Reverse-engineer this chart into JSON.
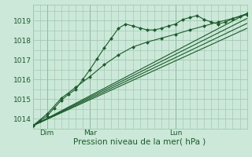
{
  "bg_color": "#cce8d8",
  "grid_color": "#99c4aa",
  "line_color": "#1a5c2a",
  "marker_color": "#1a5c2a",
  "xlabel": "Pression niveau de la mer( hPa )",
  "xlim": [
    0,
    60
  ],
  "ylim": [
    1013.5,
    1019.8
  ],
  "yticks": [
    1014,
    1015,
    1016,
    1017,
    1018,
    1019
  ],
  "xtick_labels": [
    "Dim",
    "Mar",
    "Lun"
  ],
  "xtick_positions": [
    4,
    16,
    40
  ],
  "vline_positions": [
    4,
    16,
    40
  ],
  "series": [
    {
      "x": [
        0,
        2,
        4,
        6,
        8,
        10,
        12,
        14,
        16,
        18,
        20,
        22,
        24,
        26,
        28,
        30,
        32,
        34,
        36,
        38,
        40,
        42,
        44,
        46,
        48,
        50,
        52,
        54,
        56,
        58,
        60
      ],
      "y": [
        1013.65,
        1013.9,
        1014.15,
        1014.55,
        1014.95,
        1015.25,
        1015.5,
        1016.0,
        1016.5,
        1017.05,
        1017.6,
        1018.1,
        1018.6,
        1018.82,
        1018.72,
        1018.62,
        1018.52,
        1018.52,
        1018.6,
        1018.72,
        1018.82,
        1019.05,
        1019.15,
        1019.25,
        1019.05,
        1018.92,
        1018.82,
        1018.92,
        1019.1,
        1019.22,
        1019.35
      ],
      "marker": "D",
      "linewidth": 0.8,
      "markersize": 2.0
    },
    {
      "x": [
        0,
        4,
        8,
        12,
        16,
        20,
        24,
        28,
        32,
        36,
        40,
        44,
        48,
        52,
        56,
        60
      ],
      "y": [
        1013.65,
        1014.25,
        1015.05,
        1015.6,
        1016.15,
        1016.75,
        1017.25,
        1017.65,
        1017.9,
        1018.1,
        1018.3,
        1018.52,
        1018.72,
        1018.92,
        1019.1,
        1019.3
      ],
      "marker": "D",
      "linewidth": 0.8,
      "markersize": 2.0
    },
    {
      "x": [
        0,
        60
      ],
      "y": [
        1013.65,
        1019.35
      ],
      "marker": null,
      "linewidth": 0.8,
      "markersize": 0
    },
    {
      "x": [
        0,
        60
      ],
      "y": [
        1013.65,
        1019.1
      ],
      "marker": null,
      "linewidth": 0.8,
      "markersize": 0
    },
    {
      "x": [
        0,
        60
      ],
      "y": [
        1013.65,
        1018.85
      ],
      "marker": null,
      "linewidth": 0.8,
      "markersize": 0
    },
    {
      "x": [
        0,
        60
      ],
      "y": [
        1013.65,
        1018.6
      ],
      "marker": null,
      "linewidth": 0.8,
      "markersize": 0
    }
  ]
}
